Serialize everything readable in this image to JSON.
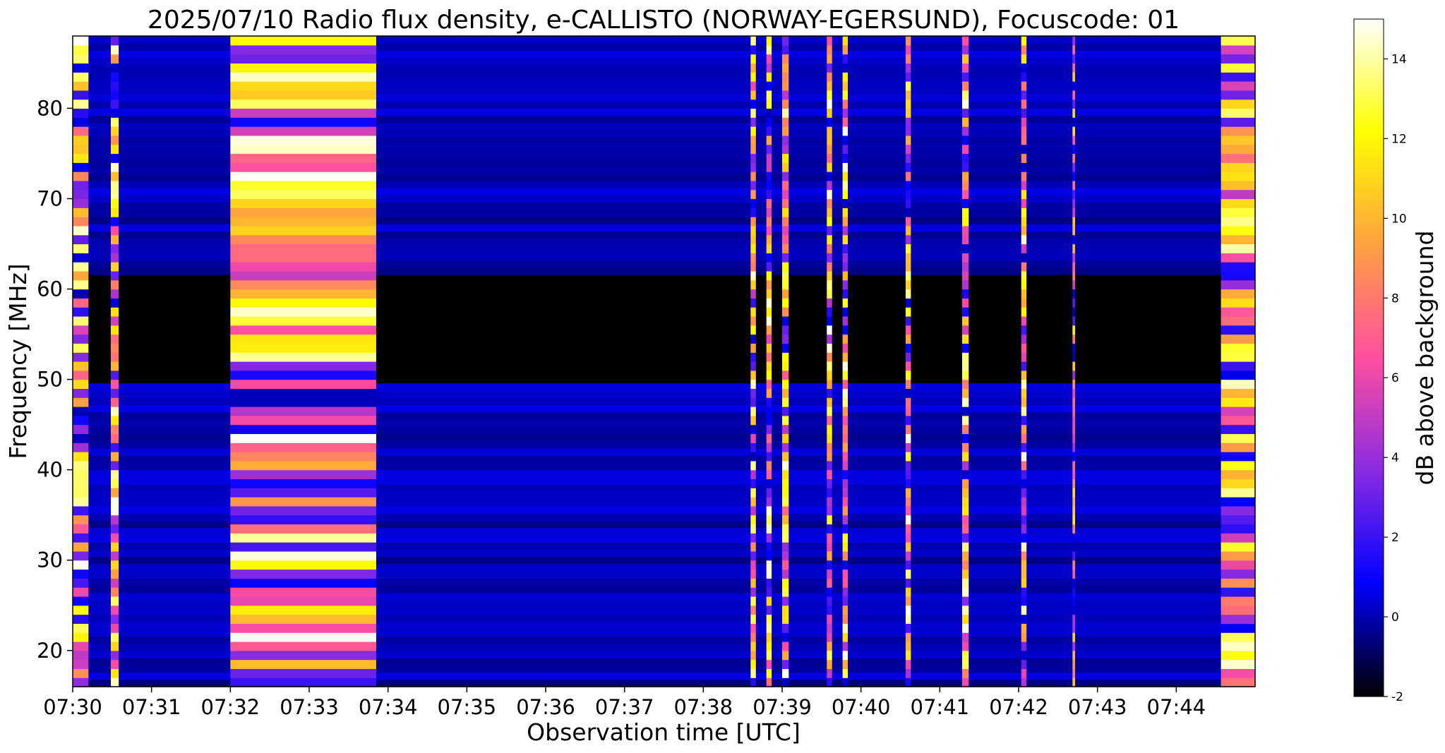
{
  "chart_data": {
    "type": "heatmap",
    "title": "2025/07/10  Radio flux density, e-CALLISTO (NORWAY-EGERSUND), Focuscode: 01",
    "xlabel": "Observation time [UTC]",
    "ylabel": "Frequency [MHz]",
    "colorbar_label": "dB above background",
    "colormap": "gnuplot2",
    "colormap_stops": [
      "#000000",
      "#0000ff",
      "#8a2be2",
      "#ff4fa0",
      "#ffa040",
      "#ffff00",
      "#ffffff"
    ],
    "xlim": [
      "07:30:00",
      "07:45:00"
    ],
    "ylim": [
      16,
      88
    ],
    "clim": [
      -2,
      15
    ],
    "x_ticks": [
      "07:30",
      "07:31",
      "07:32",
      "07:33",
      "07:34",
      "07:35",
      "07:36",
      "07:37",
      "07:38",
      "07:39",
      "07:40",
      "07:41",
      "07:42",
      "07:43",
      "07:44"
    ],
    "y_ticks": [
      20,
      30,
      40,
      50,
      60,
      70,
      80
    ],
    "colorbar_ticks": [
      -2,
      0,
      2,
      4,
      6,
      8,
      10,
      12,
      14
    ],
    "background_level_db": 0,
    "quiet_band_mhz": [
      49.5,
      62
    ],
    "quiet_band_level_db": -2,
    "bursts": [
      {
        "start": "07:30:00",
        "end": "07:30:12",
        "peak_db": 15
      },
      {
        "start": "07:30:29",
        "end": "07:30:35",
        "peak_db": 15
      },
      {
        "start": "07:32:00",
        "end": "07:33:51",
        "peak_db": 15
      },
      {
        "start": "07:38:36",
        "end": "07:38:40",
        "peak_db": 15
      },
      {
        "start": "07:38:48",
        "end": "07:38:52",
        "peak_db": 15
      },
      {
        "start": "07:39:00",
        "end": "07:39:05",
        "peak_db": 15
      },
      {
        "start": "07:39:34",
        "end": "07:39:38",
        "peak_db": 15
      },
      {
        "start": "07:39:46",
        "end": "07:39:50",
        "peak_db": 15
      },
      {
        "start": "07:40:34",
        "end": "07:40:38",
        "peak_db": 15
      },
      {
        "start": "07:41:17",
        "end": "07:41:22",
        "peak_db": 15
      },
      {
        "start": "07:42:02",
        "end": "07:42:06",
        "peak_db": 15
      },
      {
        "start": "07:42:41",
        "end": "07:42:43",
        "peak_db": 12
      },
      {
        "start": "07:44:34",
        "end": "07:45:00",
        "peak_db": 15
      }
    ]
  }
}
